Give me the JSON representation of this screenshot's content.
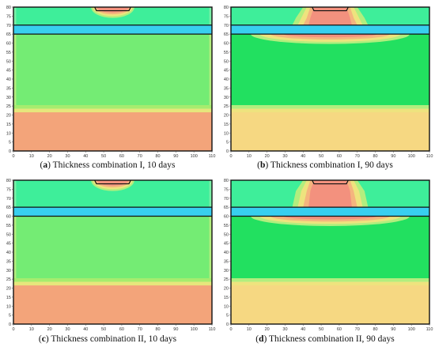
{
  "colors": {
    "top_base": "#3EEE9A",
    "top_edge": "#78F0A8",
    "band": "#38CFEF",
    "middle": "#74EC74",
    "middle_late": "#22E060",
    "transition_1": "#A6EC6E",
    "transition_2": "#E6E67C",
    "bottom_early": "#F3A47A",
    "bottom_late": "#F6D882",
    "hot": "#F3917E",
    "warm": "#F5B57E",
    "mild": "#EEE37E",
    "cool": "#B2EE7E",
    "outline": "#111111"
  },
  "figure": {
    "x_ticks": [
      "0",
      "10",
      "20",
      "30",
      "40",
      "50",
      "60",
      "70",
      "80",
      "90",
      "100",
      "110"
    ],
    "y_ticks": [
      "0",
      "5",
      "10",
      "15",
      "20",
      "25",
      "30",
      "35",
      "40",
      "45",
      "50",
      "55",
      "60",
      "65",
      "70",
      "75",
      "80"
    ],
    "panels": [
      {
        "id": "a",
        "letter": "a",
        "caption": " Thickness combination I, 10 days",
        "band_bottom": 65,
        "band_top": 70,
        "time": "early"
      },
      {
        "id": "b",
        "letter": "b",
        "caption": " Thickness combination I, 90 days",
        "band_bottom": 65,
        "band_top": 70,
        "time": "late"
      },
      {
        "id": "c",
        "letter": "c",
        "caption": " Thickness combination II, 10 days",
        "band_bottom": 60,
        "band_top": 65,
        "time": "early"
      },
      {
        "id": "d",
        "letter": "d",
        "caption": " Thickness combination II, 90 days",
        "band_bottom": 60,
        "band_top": 65,
        "time": "late"
      }
    ]
  }
}
